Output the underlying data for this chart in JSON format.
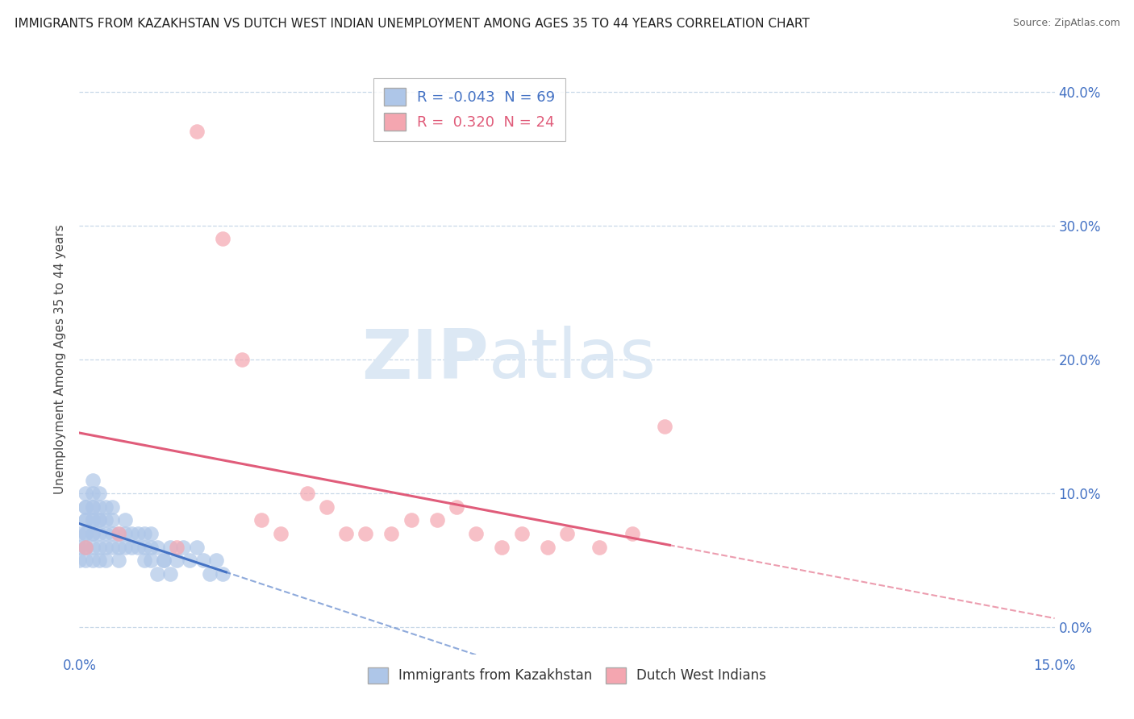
{
  "title": "IMMIGRANTS FROM KAZAKHSTAN VS DUTCH WEST INDIAN UNEMPLOYMENT AMONG AGES 35 TO 44 YEARS CORRELATION CHART",
  "source": "Source: ZipAtlas.com",
  "ylabel": "Unemployment Among Ages 35 to 44 years",
  "x_min": 0.0,
  "x_max": 0.15,
  "y_min": -0.02,
  "y_max": 0.42,
  "x_ticks": [
    0.0,
    0.15
  ],
  "x_tick_labels": [
    "0.0%",
    "15.0%"
  ],
  "y_ticks_right": [
    0.0,
    0.1,
    0.2,
    0.3,
    0.4
  ],
  "y_tick_labels_right": [
    "0.0%",
    "10.0%",
    "20.0%",
    "30.0%",
    "40.0%"
  ],
  "legend1_label": "Immigrants from Kazakhstan",
  "legend2_label": "Dutch West Indians",
  "R1": -0.043,
  "N1": 69,
  "R2": 0.32,
  "N2": 24,
  "dot_color1": "#aec6e8",
  "dot_color2": "#f4a6b0",
  "line_color1": "#4472c4",
  "line_color2": "#e05c7a",
  "background_color": "#ffffff",
  "grid_color": "#c8d8e8",
  "watermark": "ZIPatlas",
  "watermark_color": "#dce8f4",
  "title_fontsize": 11,
  "source_fontsize": 9,
  "kazakhstan_x": [
    0.0,
    0.0,
    0.0,
    0.001,
    0.001,
    0.001,
    0.001,
    0.001,
    0.001,
    0.001,
    0.001,
    0.001,
    0.001,
    0.002,
    0.002,
    0.002,
    0.002,
    0.002,
    0.002,
    0.002,
    0.002,
    0.002,
    0.002,
    0.003,
    0.003,
    0.003,
    0.003,
    0.003,
    0.003,
    0.003,
    0.004,
    0.004,
    0.004,
    0.004,
    0.004,
    0.005,
    0.005,
    0.005,
    0.005,
    0.006,
    0.006,
    0.006,
    0.007,
    0.007,
    0.007,
    0.008,
    0.008,
    0.009,
    0.009,
    0.01,
    0.01,
    0.011,
    0.011,
    0.012,
    0.013,
    0.014,
    0.015,
    0.016,
    0.017,
    0.018,
    0.019,
    0.02,
    0.021,
    0.022,
    0.01,
    0.011,
    0.012,
    0.013,
    0.014
  ],
  "kazakhstan_y": [
    0.07,
    0.06,
    0.05,
    0.1,
    0.09,
    0.08,
    0.07,
    0.06,
    0.05,
    0.08,
    0.07,
    0.06,
    0.09,
    0.11,
    0.1,
    0.09,
    0.08,
    0.07,
    0.06,
    0.05,
    0.08,
    0.09,
    0.07,
    0.1,
    0.09,
    0.08,
    0.07,
    0.06,
    0.05,
    0.08,
    0.09,
    0.07,
    0.06,
    0.08,
    0.05,
    0.07,
    0.06,
    0.08,
    0.09,
    0.07,
    0.06,
    0.05,
    0.08,
    0.07,
    0.06,
    0.07,
    0.06,
    0.07,
    0.06,
    0.07,
    0.05,
    0.06,
    0.07,
    0.06,
    0.05,
    0.06,
    0.05,
    0.06,
    0.05,
    0.06,
    0.05,
    0.04,
    0.05,
    0.04,
    0.06,
    0.05,
    0.04,
    0.05,
    0.04
  ],
  "dutch_x": [
    0.001,
    0.015,
    0.018,
    0.022,
    0.025,
    0.028,
    0.031,
    0.035,
    0.038,
    0.041,
    0.006,
    0.044,
    0.048,
    0.051,
    0.055,
    0.058,
    0.061,
    0.065,
    0.068,
    0.072,
    0.075,
    0.08,
    0.085,
    0.09
  ],
  "dutch_y": [
    0.06,
    0.06,
    0.37,
    0.29,
    0.2,
    0.08,
    0.07,
    0.1,
    0.09,
    0.07,
    0.07,
    0.07,
    0.07,
    0.08,
    0.08,
    0.09,
    0.07,
    0.06,
    0.07,
    0.06,
    0.07,
    0.06,
    0.07,
    0.15
  ]
}
